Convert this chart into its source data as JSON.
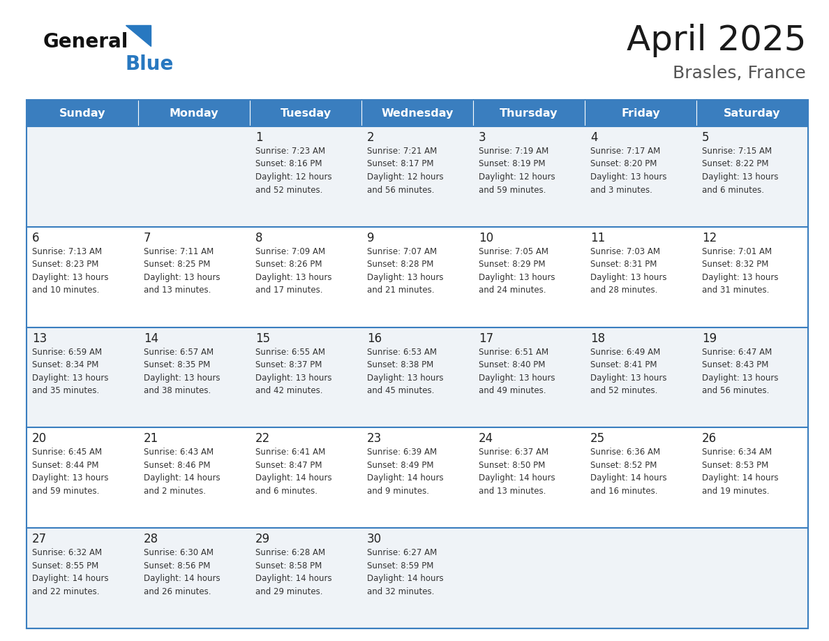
{
  "title": "April 2025",
  "subtitle": "Brasles, France",
  "days_of_week": [
    "Sunday",
    "Monday",
    "Tuesday",
    "Wednesday",
    "Thursday",
    "Friday",
    "Saturday"
  ],
  "header_bg": "#3a7ebf",
  "header_text": "#ffffff",
  "row_bg_even": "#eff3f7",
  "row_bg_odd": "#ffffff",
  "day_num_color": "#222222",
  "cell_text_color": "#333333",
  "border_color": "#3a7ebf",
  "title_color": "#1a1a1a",
  "subtitle_color": "#555555",
  "logo_general_color": "#111111",
  "logo_blue_color": "#2878c0",
  "logo_triangle_color": "#2878c0",
  "weeks": [
    [
      {
        "day": null,
        "info": null
      },
      {
        "day": null,
        "info": null
      },
      {
        "day": 1,
        "info": "Sunrise: 7:23 AM\nSunset: 8:16 PM\nDaylight: 12 hours\nand 52 minutes."
      },
      {
        "day": 2,
        "info": "Sunrise: 7:21 AM\nSunset: 8:17 PM\nDaylight: 12 hours\nand 56 minutes."
      },
      {
        "day": 3,
        "info": "Sunrise: 7:19 AM\nSunset: 8:19 PM\nDaylight: 12 hours\nand 59 minutes."
      },
      {
        "day": 4,
        "info": "Sunrise: 7:17 AM\nSunset: 8:20 PM\nDaylight: 13 hours\nand 3 minutes."
      },
      {
        "day": 5,
        "info": "Sunrise: 7:15 AM\nSunset: 8:22 PM\nDaylight: 13 hours\nand 6 minutes."
      }
    ],
    [
      {
        "day": 6,
        "info": "Sunrise: 7:13 AM\nSunset: 8:23 PM\nDaylight: 13 hours\nand 10 minutes."
      },
      {
        "day": 7,
        "info": "Sunrise: 7:11 AM\nSunset: 8:25 PM\nDaylight: 13 hours\nand 13 minutes."
      },
      {
        "day": 8,
        "info": "Sunrise: 7:09 AM\nSunset: 8:26 PM\nDaylight: 13 hours\nand 17 minutes."
      },
      {
        "day": 9,
        "info": "Sunrise: 7:07 AM\nSunset: 8:28 PM\nDaylight: 13 hours\nand 21 minutes."
      },
      {
        "day": 10,
        "info": "Sunrise: 7:05 AM\nSunset: 8:29 PM\nDaylight: 13 hours\nand 24 minutes."
      },
      {
        "day": 11,
        "info": "Sunrise: 7:03 AM\nSunset: 8:31 PM\nDaylight: 13 hours\nand 28 minutes."
      },
      {
        "day": 12,
        "info": "Sunrise: 7:01 AM\nSunset: 8:32 PM\nDaylight: 13 hours\nand 31 minutes."
      }
    ],
    [
      {
        "day": 13,
        "info": "Sunrise: 6:59 AM\nSunset: 8:34 PM\nDaylight: 13 hours\nand 35 minutes."
      },
      {
        "day": 14,
        "info": "Sunrise: 6:57 AM\nSunset: 8:35 PM\nDaylight: 13 hours\nand 38 minutes."
      },
      {
        "day": 15,
        "info": "Sunrise: 6:55 AM\nSunset: 8:37 PM\nDaylight: 13 hours\nand 42 minutes."
      },
      {
        "day": 16,
        "info": "Sunrise: 6:53 AM\nSunset: 8:38 PM\nDaylight: 13 hours\nand 45 minutes."
      },
      {
        "day": 17,
        "info": "Sunrise: 6:51 AM\nSunset: 8:40 PM\nDaylight: 13 hours\nand 49 minutes."
      },
      {
        "day": 18,
        "info": "Sunrise: 6:49 AM\nSunset: 8:41 PM\nDaylight: 13 hours\nand 52 minutes."
      },
      {
        "day": 19,
        "info": "Sunrise: 6:47 AM\nSunset: 8:43 PM\nDaylight: 13 hours\nand 56 minutes."
      }
    ],
    [
      {
        "day": 20,
        "info": "Sunrise: 6:45 AM\nSunset: 8:44 PM\nDaylight: 13 hours\nand 59 minutes."
      },
      {
        "day": 21,
        "info": "Sunrise: 6:43 AM\nSunset: 8:46 PM\nDaylight: 14 hours\nand 2 minutes."
      },
      {
        "day": 22,
        "info": "Sunrise: 6:41 AM\nSunset: 8:47 PM\nDaylight: 14 hours\nand 6 minutes."
      },
      {
        "day": 23,
        "info": "Sunrise: 6:39 AM\nSunset: 8:49 PM\nDaylight: 14 hours\nand 9 minutes."
      },
      {
        "day": 24,
        "info": "Sunrise: 6:37 AM\nSunset: 8:50 PM\nDaylight: 14 hours\nand 13 minutes."
      },
      {
        "day": 25,
        "info": "Sunrise: 6:36 AM\nSunset: 8:52 PM\nDaylight: 14 hours\nand 16 minutes."
      },
      {
        "day": 26,
        "info": "Sunrise: 6:34 AM\nSunset: 8:53 PM\nDaylight: 14 hours\nand 19 minutes."
      }
    ],
    [
      {
        "day": 27,
        "info": "Sunrise: 6:32 AM\nSunset: 8:55 PM\nDaylight: 14 hours\nand 22 minutes."
      },
      {
        "day": 28,
        "info": "Sunrise: 6:30 AM\nSunset: 8:56 PM\nDaylight: 14 hours\nand 26 minutes."
      },
      {
        "day": 29,
        "info": "Sunrise: 6:28 AM\nSunset: 8:58 PM\nDaylight: 14 hours\nand 29 minutes."
      },
      {
        "day": 30,
        "info": "Sunrise: 6:27 AM\nSunset: 8:59 PM\nDaylight: 14 hours\nand 32 minutes."
      },
      {
        "day": null,
        "info": null
      },
      {
        "day": null,
        "info": null
      },
      {
        "day": null,
        "info": null
      }
    ]
  ]
}
